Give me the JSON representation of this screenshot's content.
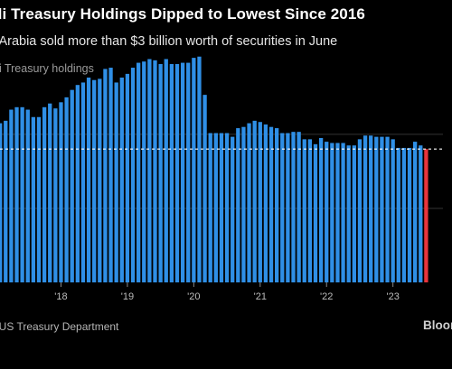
{
  "header": {
    "title": "di Treasury Holdings Dipped to Lowest Since 2016",
    "subtitle": "i Arabia sold more than $3 billion worth of securities in June",
    "series_label": "di Treasury holdings"
  },
  "footer": {
    "source": ": US Treasury Department",
    "brand": "Bloom"
  },
  "colors": {
    "background": "#000000",
    "bar": "#2f8fe6",
    "highlight": "#e8343b",
    "reference_line": "#ffffff",
    "gridline": "#333333"
  },
  "chart_data": {
    "type": "bar",
    "title": "di Treasury Holdings Dipped to Lowest Since 2016",
    "subtitle": "i Arabia sold more than $3 billion worth of securities in June",
    "ylabel": "",
    "xlabel": "",
    "ylim": [
      0,
      185
    ],
    "gridlines": [
      0,
      60,
      120
    ],
    "reference_line": 108.1,
    "x_ticks": [
      {
        "label": "'18",
        "index": 11
      },
      {
        "label": "'19",
        "index": 23
      },
      {
        "label": "'20",
        "index": 35
      },
      {
        "label": "'21",
        "index": 47
      },
      {
        "label": "'22",
        "index": 59
      },
      {
        "label": "'23",
        "index": 71
      }
    ],
    "categories": [
      "2017-01",
      "2017-02",
      "2017-03",
      "2017-04",
      "2017-05",
      "2017-06",
      "2017-07",
      "2017-08",
      "2017-09",
      "2017-10",
      "2017-11",
      "2017-12",
      "2018-01",
      "2018-02",
      "2018-03",
      "2018-04",
      "2018-05",
      "2018-06",
      "2018-07",
      "2018-08",
      "2018-09",
      "2018-10",
      "2018-11",
      "2018-12",
      "2019-01",
      "2019-02",
      "2019-03",
      "2019-04",
      "2019-05",
      "2019-06",
      "2019-07",
      "2019-08",
      "2019-09",
      "2019-10",
      "2019-11",
      "2019-12",
      "2020-01",
      "2020-02",
      "2020-03",
      "2020-04",
      "2020-05",
      "2020-06",
      "2020-07",
      "2020-08",
      "2020-09",
      "2020-10",
      "2020-11",
      "2020-12",
      "2021-01",
      "2021-02",
      "2021-03",
      "2021-04",
      "2021-05",
      "2021-06",
      "2021-07",
      "2021-08",
      "2021-09",
      "2021-10",
      "2021-11",
      "2021-12",
      "2022-01",
      "2022-02",
      "2022-03",
      "2022-04",
      "2022-05",
      "2022-06",
      "2022-07",
      "2022-08",
      "2022-09",
      "2022-10",
      "2022-11",
      "2022-12",
      "2023-01",
      "2023-02",
      "2023-03",
      "2023-04",
      "2023-05",
      "2023-06"
    ],
    "values": [
      129,
      131,
      140,
      142,
      142,
      140,
      134,
      134,
      142,
      145,
      141,
      146,
      150,
      156,
      160,
      162,
      166,
      164,
      165,
      173,
      174,
      162,
      166,
      169,
      174,
      178,
      179,
      181,
      180,
      177,
      181,
      177,
      177,
      178,
      178,
      182,
      183,
      152,
      121,
      121,
      121,
      121,
      118,
      125,
      126,
      129,
      131,
      130,
      128,
      126,
      125,
      121,
      121,
      122,
      122,
      116,
      116,
      112,
      117,
      114,
      113,
      113,
      113,
      111,
      111,
      116,
      119,
      119,
      118,
      118,
      118,
      116,
      109,
      109,
      109,
      114,
      111,
      108.1
    ],
    "highlight_index": 77
  }
}
